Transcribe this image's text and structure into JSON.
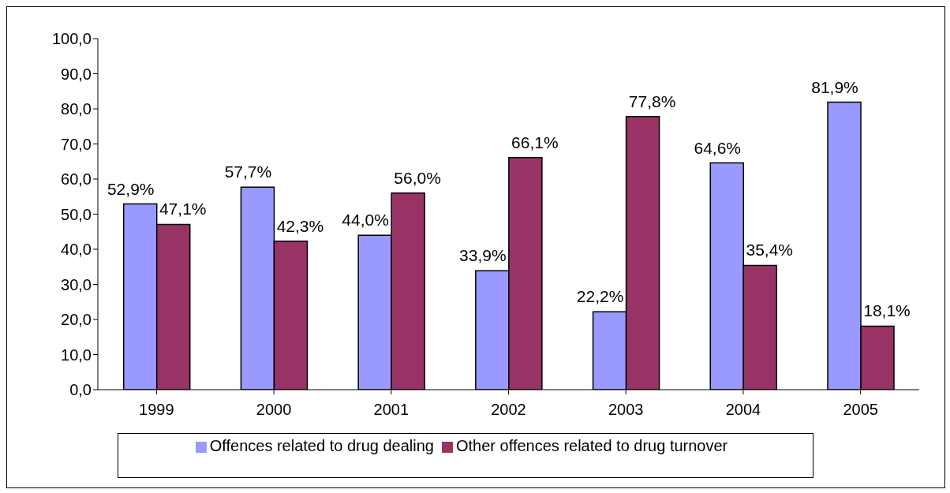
{
  "chart_data": {
    "type": "bar",
    "categories": [
      "1999",
      "2000",
      "2001",
      "2002",
      "2003",
      "2004",
      "2005"
    ],
    "series": [
      {
        "name": "Offences related to drug dealing",
        "color": "#9999ff",
        "values": [
          52.9,
          57.7,
          44.0,
          33.9,
          22.2,
          64.6,
          81.9
        ],
        "value_labels": [
          "52,9%",
          "57,7%",
          "44,0%",
          "33,9%",
          "22,2%",
          "64,6%",
          "81,9%"
        ]
      },
      {
        "name": "Other offences related to drug turnover",
        "color": "#993366",
        "values": [
          47.1,
          42.3,
          56.0,
          66.1,
          77.8,
          35.4,
          18.1
        ],
        "value_labels": [
          "47,1%",
          "42,3%",
          "56,0%",
          "66,1%",
          "77,8%",
          "35,4%",
          "18,1%"
        ]
      }
    ],
    "ylim": [
      0,
      100
    ],
    "yticks": [
      {
        "value": 0,
        "label": "0,0"
      },
      {
        "value": 10,
        "label": "10,0"
      },
      {
        "value": 20,
        "label": "20,0"
      },
      {
        "value": 30,
        "label": "30,0"
      },
      {
        "value": 40,
        "label": "40,0"
      },
      {
        "value": 50,
        "label": "50,0"
      },
      {
        "value": 60,
        "label": "60,0"
      },
      {
        "value": 70,
        "label": "70,0"
      },
      {
        "value": 80,
        "label": "80,0"
      },
      {
        "value": 90,
        "label": "90,0"
      },
      {
        "value": 100,
        "label": "100,0"
      }
    ],
    "grid": false,
    "legend": "bottom"
  }
}
